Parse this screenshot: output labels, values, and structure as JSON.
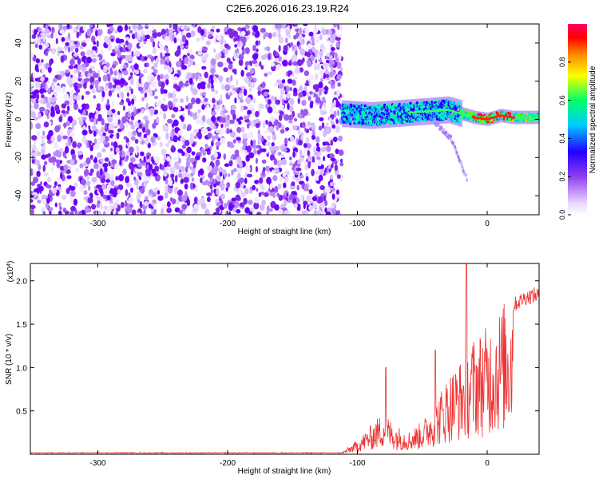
{
  "figure": {
    "title": "C2E6.2026.016.23.19.R24"
  },
  "chart_data": [
    {
      "id": "spectrogram",
      "type": "heatmap",
      "title": "C2E6.2026.016.23.19.R24",
      "xlabel": "Height of straight line (km)",
      "ylabel": "Frequency (Hz)",
      "xlim": [
        -352,
        40
      ],
      "ylim": [
        -50,
        50
      ],
      "x_ticks": [
        -300,
        -200,
        -100,
        0
      ],
      "y_ticks": [
        -40,
        -20,
        0,
        20,
        40
      ],
      "colorbar": {
        "label": "Normalized spectral amplitude",
        "range": [
          0.0,
          1.0
        ],
        "ticks": [
          0.0,
          0.2,
          0.4,
          0.6,
          0.8
        ],
        "colormap": [
          "#ffffff",
          "#e8d8ff",
          "#8f3df0",
          "#2200ff",
          "#00ccff",
          "#00ff66",
          "#ffff00",
          "#ff8800",
          "#ff0000",
          "#ff0066"
        ]
      },
      "regions": [
        {
          "name": "noise",
          "x_range": [
            -352,
            -112
          ],
          "freq_range": [
            -50,
            50
          ],
          "amplitude": 0.05
        },
        {
          "name": "signal",
          "x_range": [
            -112,
            40
          ],
          "center_freq": [
            {
              "x": -112,
              "f": 3
            },
            {
              "x": -90,
              "f": 2
            },
            {
              "x": -70,
              "f": 3
            },
            {
              "x": -50,
              "f": 4
            },
            {
              "x": -30,
              "f": 5
            },
            {
              "x": -20,
              "f": 3
            },
            {
              "x": -10,
              "f": 1
            },
            {
              "x": 0,
              "f": 0
            },
            {
              "x": 10,
              "f": 2
            },
            {
              "x": 20,
              "f": 1
            },
            {
              "x": 40,
              "f": 1
            }
          ]
        },
        {
          "name": "branch",
          "points": [
            {
              "x": -40,
              "f": -2
            },
            {
              "x": -28,
              "f": -10
            },
            {
              "x": -15,
              "f": -32
            }
          ]
        }
      ]
    },
    {
      "id": "snr",
      "type": "line",
      "xlabel": "Height of straight line (km)",
      "ylabel": "SNR (10 * v/v)",
      "y_multiplier": "(x10",
      "y_multiplier_exp": "4",
      "y_multiplier_close": ")",
      "xlim": [
        -352,
        40
      ],
      "ylim": [
        0,
        2.2
      ],
      "x_ticks": [
        -300,
        -200,
        -100,
        0
      ],
      "y_ticks": [
        0.5,
        1.0,
        1.5,
        2.0
      ],
      "y_tick_labels": [
        "0.5",
        "1.0",
        "1.5",
        "2.0"
      ],
      "color": "#ee3333",
      "envelope": [
        {
          "x": -352,
          "y": 0.01
        },
        {
          "x": -112,
          "y": 0.02
        },
        {
          "x": -100,
          "y": 0.15
        },
        {
          "x": -90,
          "y": 0.3
        },
        {
          "x": -80,
          "y": 0.45
        },
        {
          "x": -70,
          "y": 0.3
        },
        {
          "x": -60,
          "y": 0.25
        },
        {
          "x": -50,
          "y": 0.35
        },
        {
          "x": -40,
          "y": 0.55
        },
        {
          "x": -30,
          "y": 0.85
        },
        {
          "x": -20,
          "y": 1.0
        },
        {
          "x": -10,
          "y": 1.25
        },
        {
          "x": 0,
          "y": 1.35
        },
        {
          "x": 10,
          "y": 1.55
        },
        {
          "x": 20,
          "y": 1.75
        },
        {
          "x": 30,
          "y": 1.85
        },
        {
          "x": 40,
          "y": 1.88
        }
      ],
      "peaks": [
        {
          "x": -78,
          "y": 1.0
        },
        {
          "x": -40,
          "y": 1.2
        },
        {
          "x": -16,
          "y": 2.2
        }
      ]
    }
  ]
}
